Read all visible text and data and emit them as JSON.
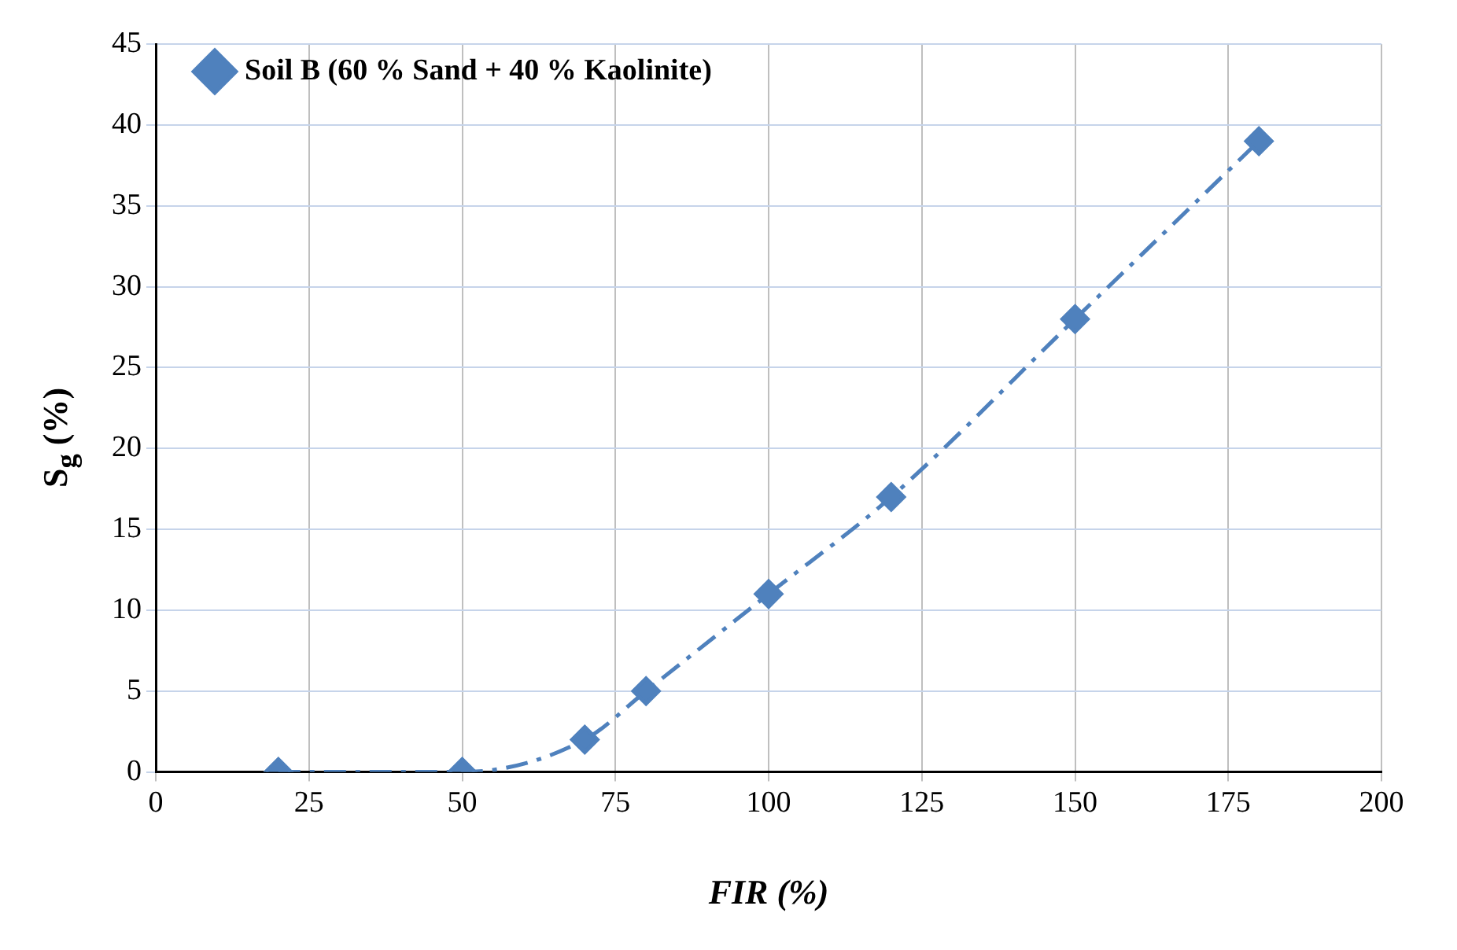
{
  "chart_data": {
    "type": "line",
    "xlabel": "FIR (%)",
    "ylabel": "S$_{g}$ (%)",
    "x": [
      20,
      50,
      70,
      80,
      100,
      120,
      150,
      180
    ],
    "series": [
      {
        "name": "Soil B (60 % Sand + 40 % Kaolinite)",
        "color": "#4f81bd",
        "values": [
          0,
          0,
          2,
          5,
          11,
          17,
          28,
          39
        ]
      }
    ],
    "xlim": [
      0,
      200
    ],
    "xticks": [
      0,
      25,
      50,
      75,
      100,
      125,
      150,
      175,
      200
    ],
    "ylim": [
      0,
      45
    ],
    "yticks": [
      0,
      5,
      10,
      15,
      20,
      25,
      30,
      35,
      40,
      45
    ],
    "grid": true,
    "legend": "top left",
    "marker": "diamond",
    "line_style": "dashed"
  }
}
